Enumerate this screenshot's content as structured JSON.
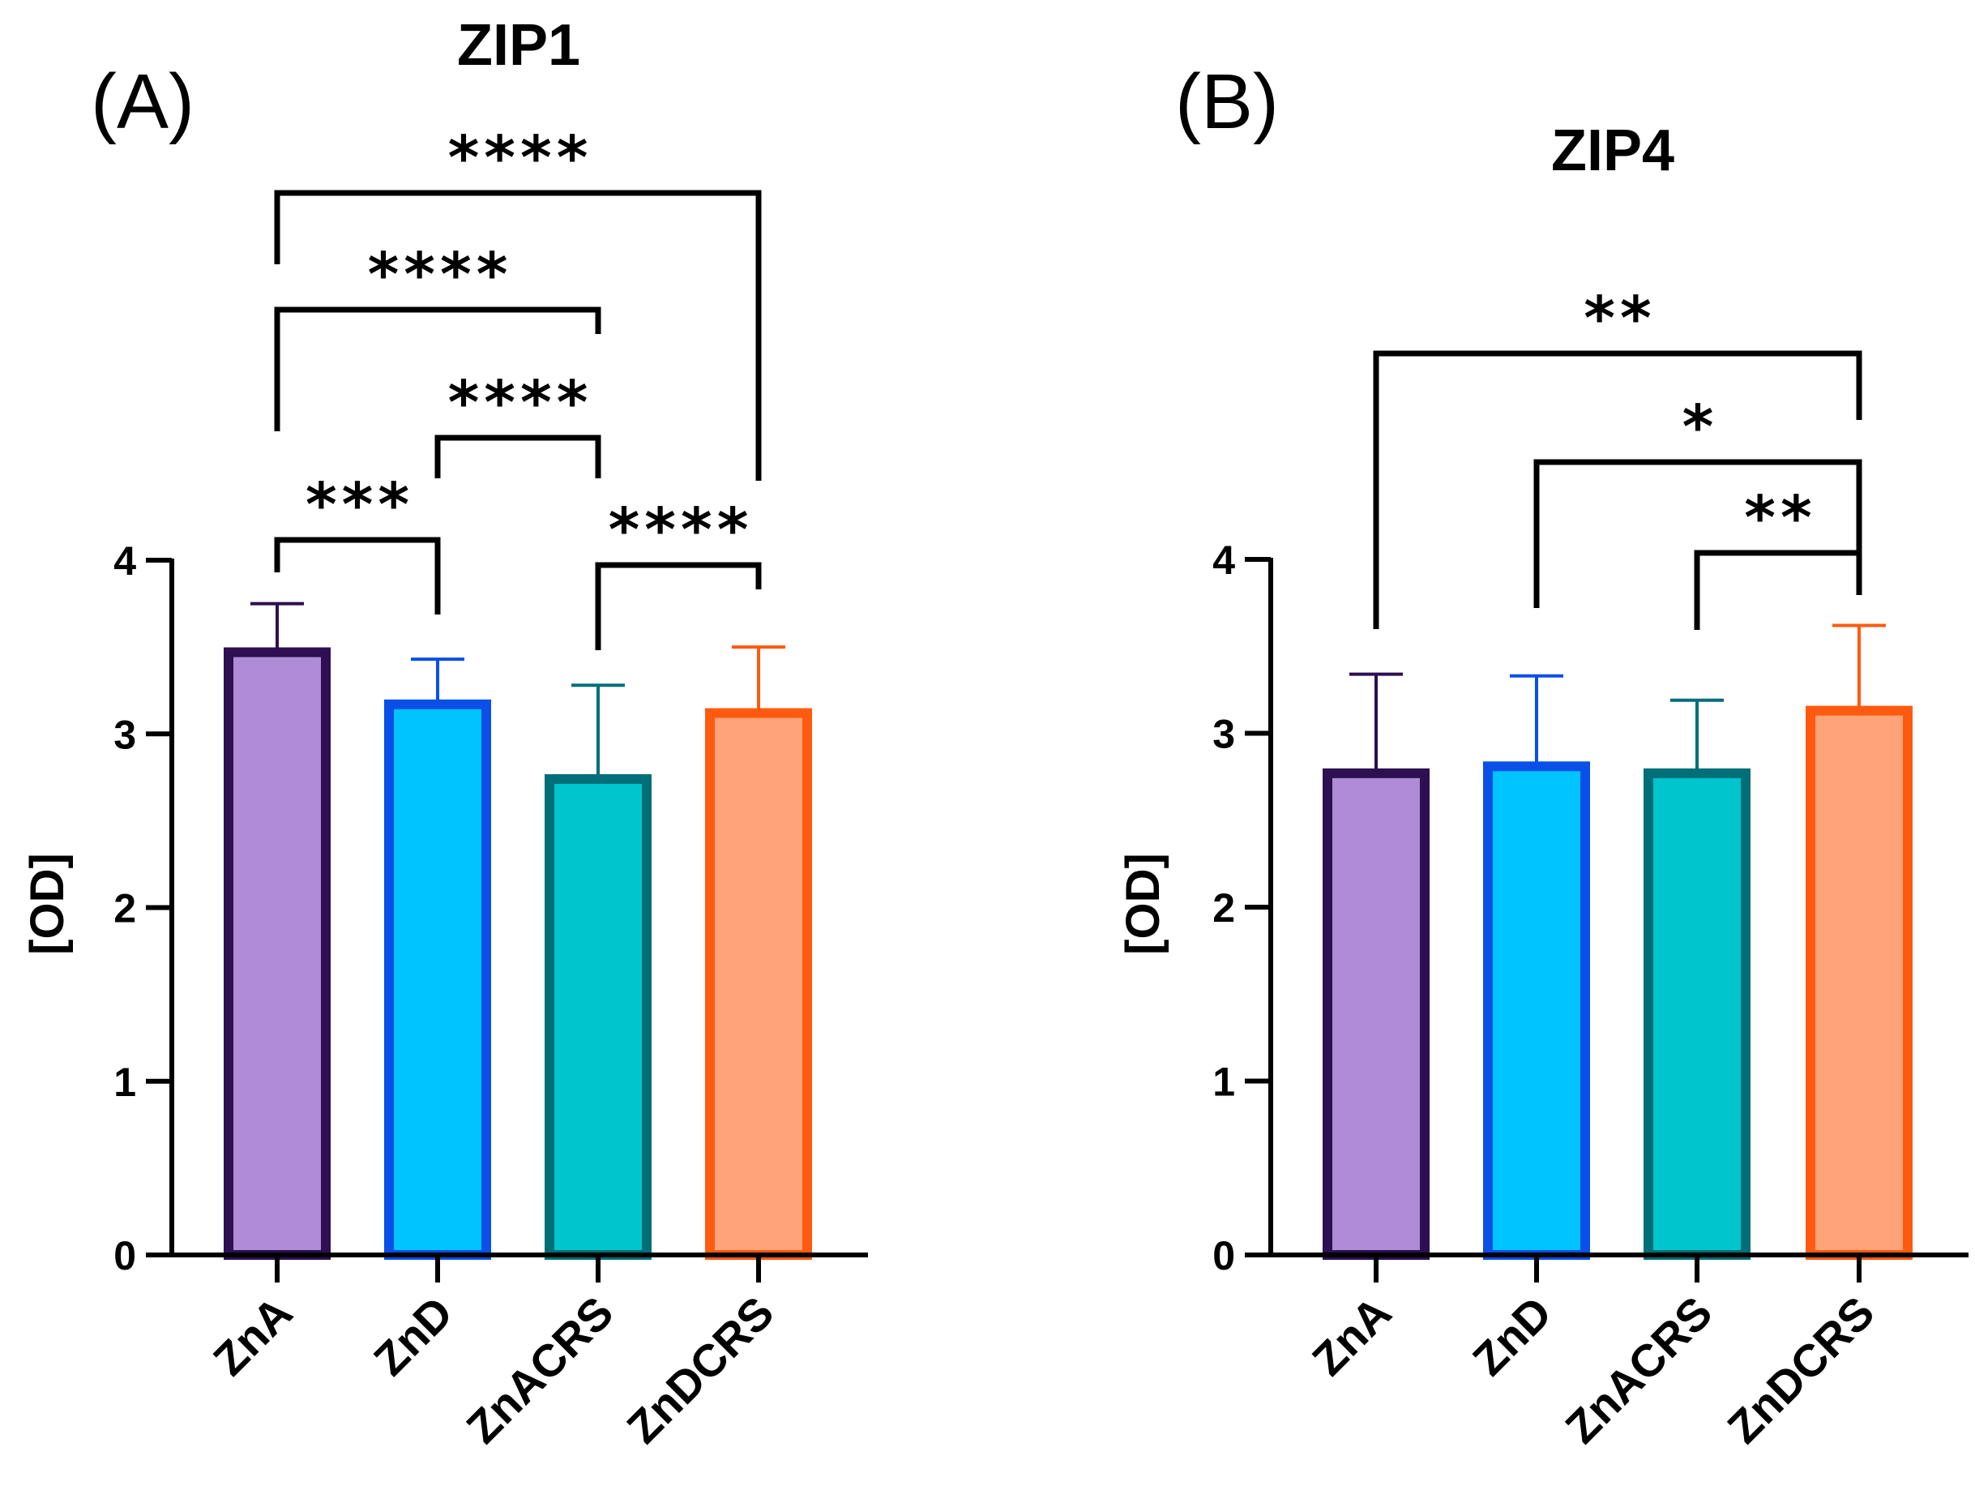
{
  "chart_data": [
    {
      "type": "bar",
      "panel_label": "(A)",
      "title": "ZIP1",
      "ylabel": "[OD]",
      "xlabel": "",
      "ylim": [
        0,
        4
      ],
      "yticks": [
        "0",
        "1",
        "2",
        "3",
        "4"
      ],
      "categories": [
        "ZnA",
        "ZnD",
        "ZnACRS",
        "ZnDCRS"
      ],
      "values": [
        3.47,
        3.17,
        2.74,
        3.12
      ],
      "errors": [
        0.28,
        0.26,
        0.54,
        0.38
      ],
      "fill_colors": [
        "#b08cd6",
        "#00c4ff",
        "#00c5cc",
        "#ffa47a"
      ],
      "edge_colors": [
        "#2d0f52",
        "#0a4fe8",
        "#006f78",
        "#ff5a0f"
      ],
      "comparisons": [
        {
          "from": 0,
          "to": 1,
          "label": "***"
        },
        {
          "from": 1,
          "to": 2,
          "label": "****"
        },
        {
          "from": 0,
          "to": 2,
          "label": "****"
        },
        {
          "from": 0,
          "to": 3,
          "label": "****"
        },
        {
          "from": 2,
          "to": 3,
          "label": "****"
        }
      ]
    },
    {
      "type": "bar",
      "panel_label": "(B)",
      "title": "ZIP4",
      "ylabel": "[OD]",
      "xlabel": "",
      "ylim": [
        0,
        4
      ],
      "yticks": [
        "0",
        "1",
        "2",
        "3",
        "4"
      ],
      "categories": [
        "ZnA",
        "ZnD",
        "ZnACRS",
        "ZnDCRS"
      ],
      "values": [
        2.77,
        2.81,
        2.77,
        3.13
      ],
      "errors": [
        0.57,
        0.52,
        0.42,
        0.49
      ],
      "fill_colors": [
        "#b08cd6",
        "#00c4ff",
        "#00c5cc",
        "#ffa47a"
      ],
      "edge_colors": [
        "#2d0f52",
        "#0a4fe8",
        "#006f78",
        "#ff5a0f"
      ],
      "comparisons": [
        {
          "from": 2,
          "to": 3,
          "label": "**"
        },
        {
          "from": 1,
          "to": 3,
          "label": "*"
        },
        {
          "from": 0,
          "to": 3,
          "label": "**"
        }
      ]
    }
  ]
}
